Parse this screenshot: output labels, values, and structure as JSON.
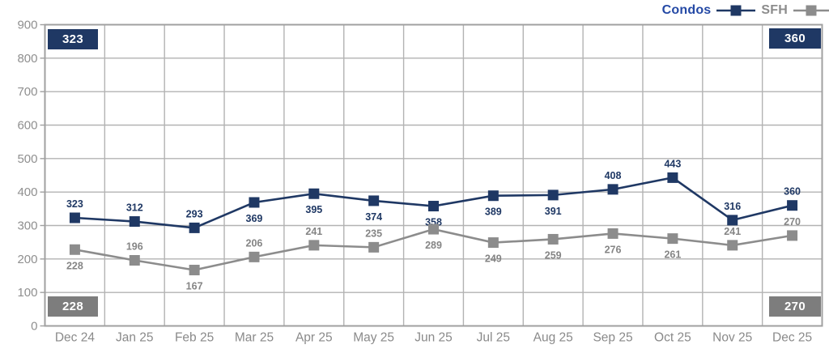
{
  "chart_data": {
    "type": "line",
    "title": "",
    "xlabel": "",
    "ylabel": "",
    "categories": [
      "Dec 24",
      "Jan 25",
      "Feb 25",
      "Mar 25",
      "Apr 25",
      "May 25",
      "Jun 25",
      "Jul 25",
      "Aug 25",
      "Sep 25",
      "Oct 25",
      "Nov 25",
      "Dec 25"
    ],
    "series": [
      {
        "name": "Condos",
        "color": "#1f3864",
        "legend_text_color": "#2449a5",
        "label_color": "#1f3864",
        "values": [
          323,
          312,
          293,
          369,
          395,
          374,
          358,
          389,
          391,
          408,
          443,
          316,
          360
        ],
        "label_side": [
          "above",
          "above",
          "above",
          "below",
          "below",
          "below",
          "below",
          "below",
          "below",
          "above",
          "above",
          "above",
          "above"
        ]
      },
      {
        "name": "SFH",
        "color": "#8c8c8c",
        "legend_text_color": "#8c8c8c",
        "label_color": "#858585",
        "values": [
          228,
          196,
          167,
          206,
          241,
          235,
          289,
          249,
          259,
          276,
          261,
          241,
          270
        ],
        "label_side": [
          "below",
          "above",
          "below",
          "above",
          "above",
          "above",
          "below",
          "below",
          "below",
          "below",
          "below",
          "above",
          "above"
        ]
      }
    ],
    "ylim": [
      0,
      900
    ],
    "ytick_step": 100,
    "grid": "both",
    "legend_position": "top-right",
    "callouts": {
      "top_left": {
        "text": "323",
        "color": "#1f3864"
      },
      "bottom_left": {
        "text": "228",
        "color": "#7d7d7d"
      },
      "top_right": {
        "text": "360",
        "color": "#1f3864"
      },
      "bottom_right": {
        "text": "270",
        "color": "#7d7d7d"
      }
    },
    "axis_colors": {
      "tick_label": "#8f8f8f",
      "gridline": "#b3b3b3",
      "border": "#a0a0a0"
    }
  }
}
